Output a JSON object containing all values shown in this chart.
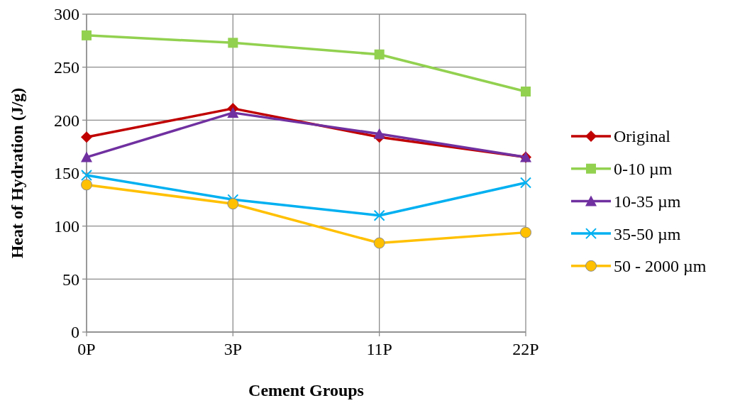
{
  "chart_data": {
    "type": "line",
    "xlabel": "Cement Groups",
    "ylabel": "Heat of Hydration (J/g)",
    "categories": [
      "0P",
      "3P",
      "11P",
      "22P"
    ],
    "series": [
      {
        "name": "Original",
        "color": "#c00000",
        "marker": "diamond",
        "values": [
          184,
          211,
          184,
          165
        ]
      },
      {
        "name": "0-10 µm",
        "color": "#92d050",
        "marker": "square",
        "values": [
          280,
          273,
          262,
          227
        ]
      },
      {
        "name": "10-35 µm",
        "color": "#7030a0",
        "marker": "triangle",
        "values": [
          165,
          207,
          187,
          165
        ]
      },
      {
        "name": "35-50 µm",
        "color": "#00b0f0",
        "marker": "cross",
        "values": [
          148,
          125,
          110,
          141
        ]
      },
      {
        "name": "50 - 2000 µm",
        "color": "#ffc000",
        "marker": "circle",
        "values": [
          139,
          121,
          84,
          94
        ]
      }
    ],
    "ylim": [
      0,
      300
    ],
    "yticks": [
      0,
      50,
      100,
      150,
      200,
      250,
      300
    ],
    "grid": true,
    "legend": "right",
    "line_style": "solid"
  }
}
